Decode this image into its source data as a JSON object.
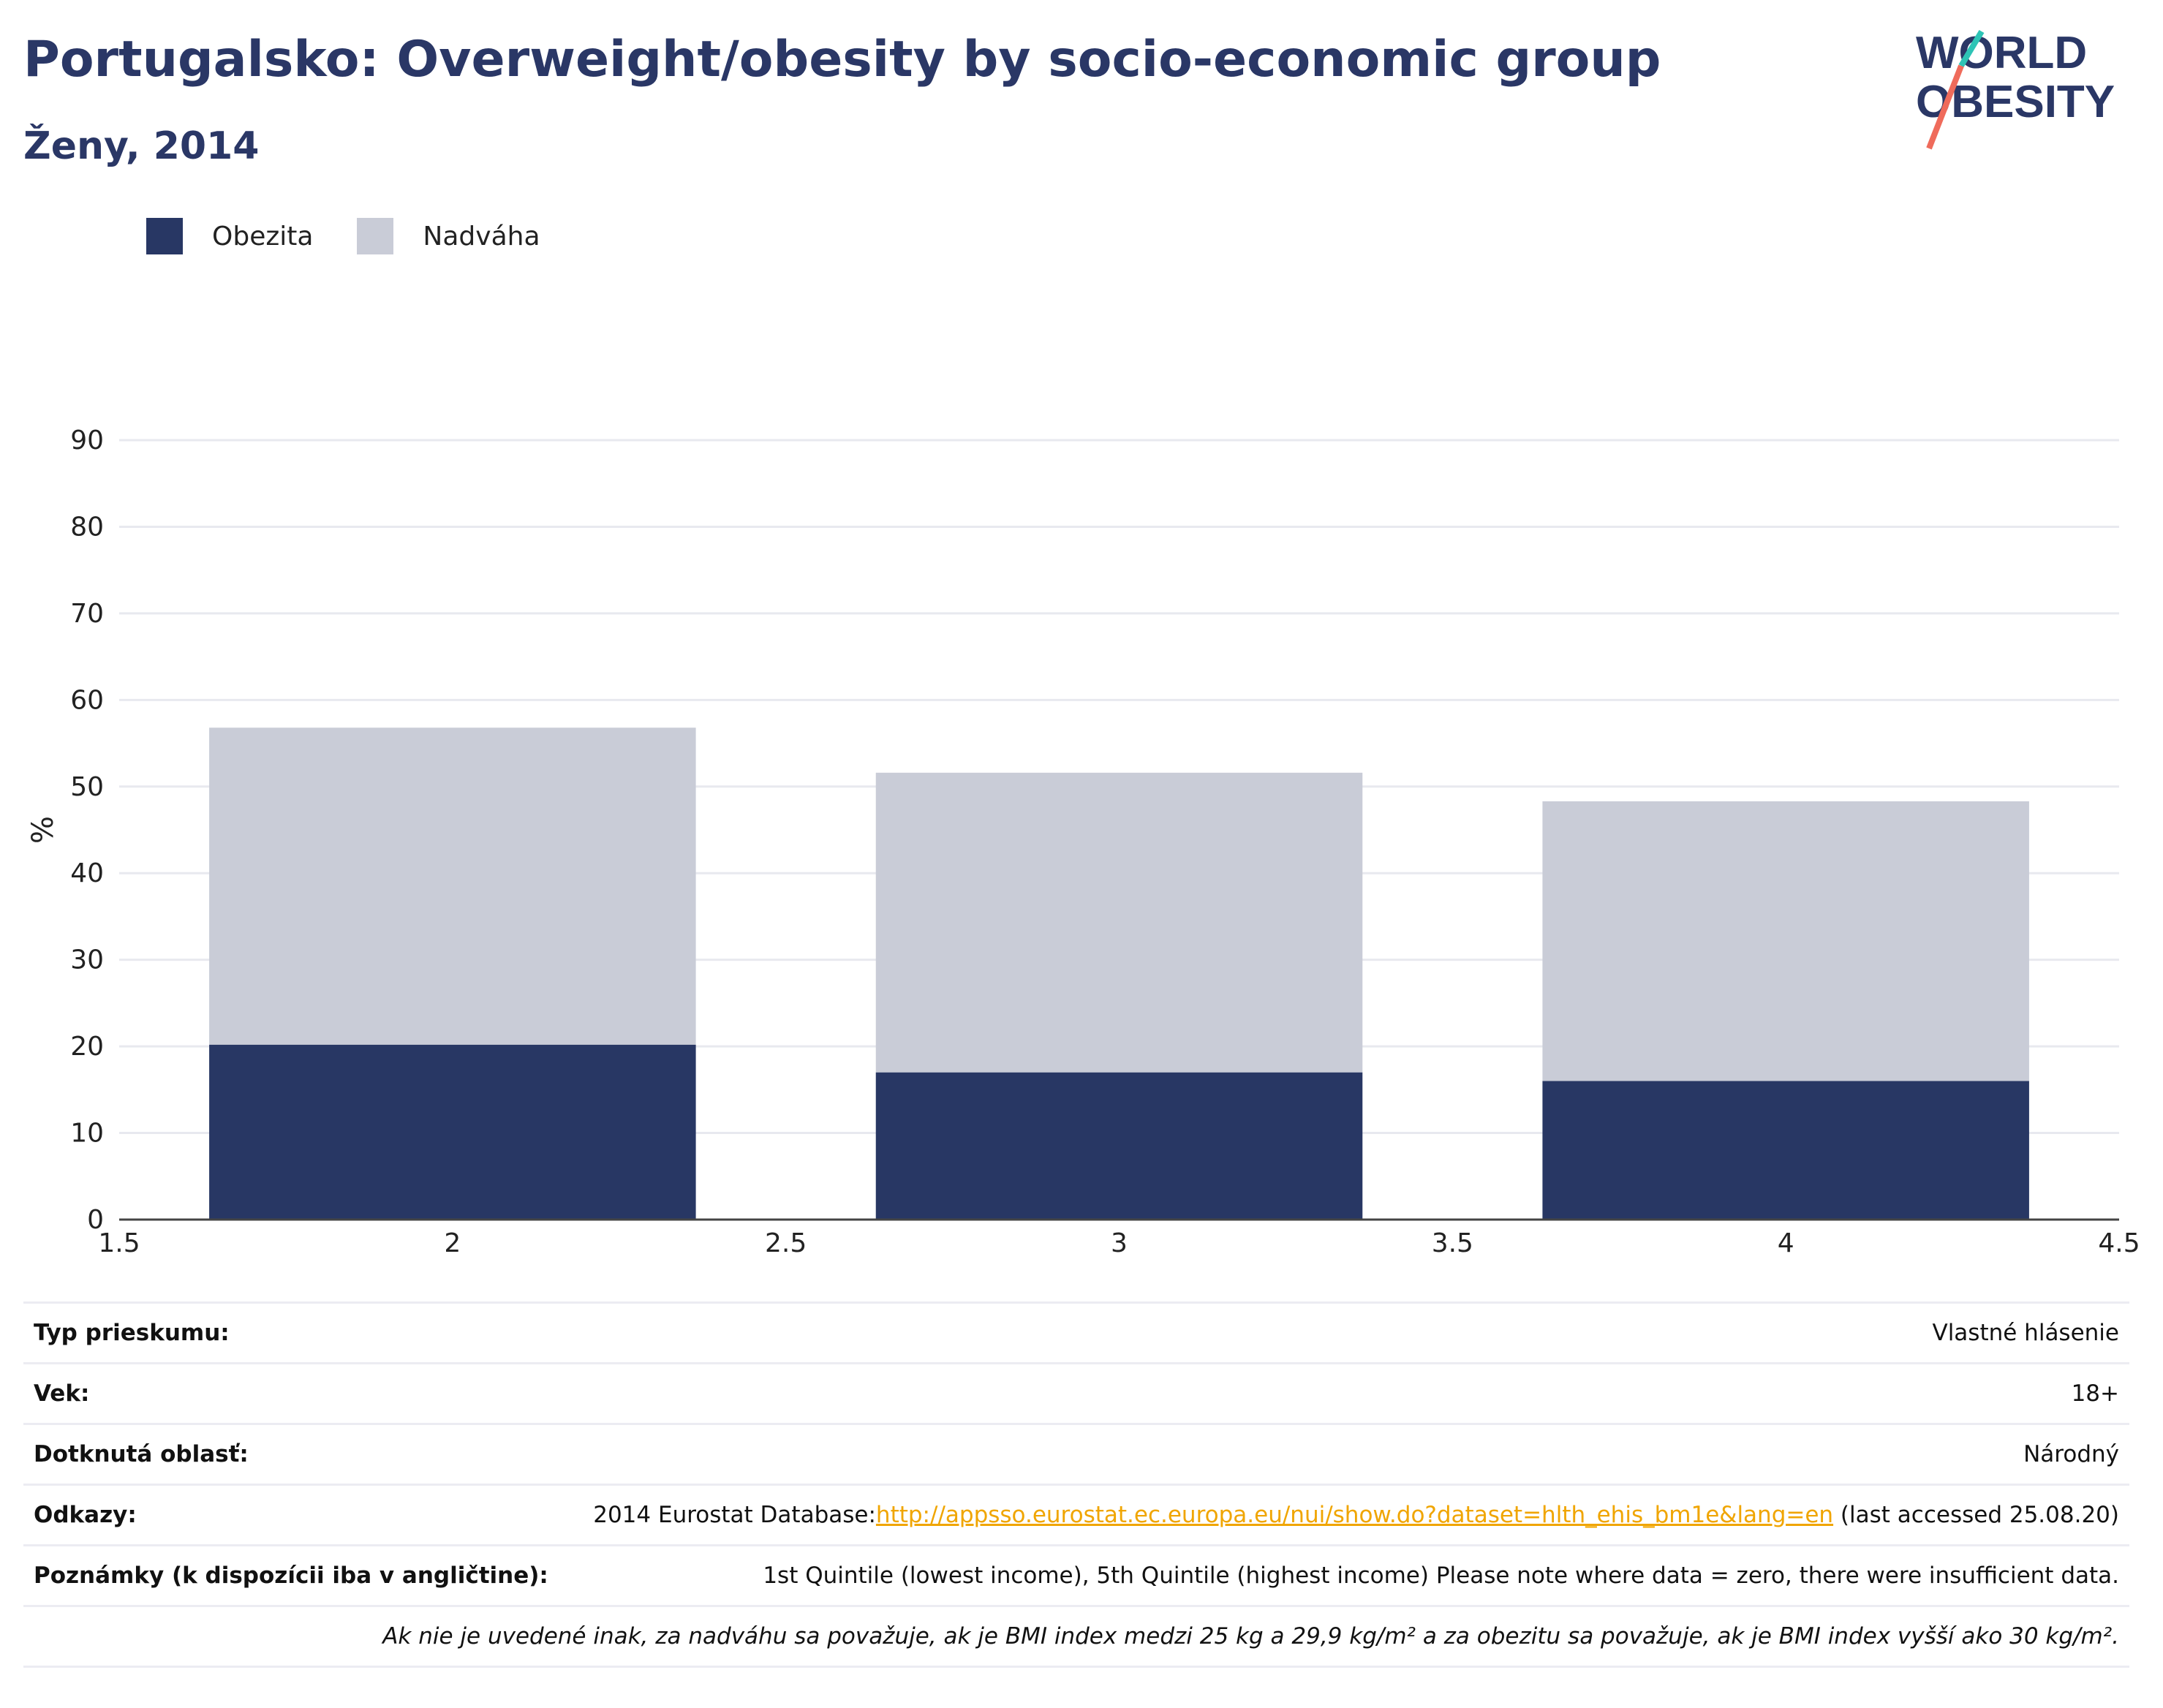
{
  "header": {
    "title": "Portugalsko: Overweight/obesity by socio-economic group",
    "subtitle": "Ženy, 2014",
    "logo_line1": "WORLD",
    "logo_line2": "OBESITY"
  },
  "legend": {
    "items": [
      {
        "label": "Obezita",
        "color": "#283764"
      },
      {
        "label": "Nadváha",
        "color": "#c9ccd7"
      }
    ]
  },
  "chart_data": {
    "type": "bar",
    "stacked": true,
    "x": [
      2,
      3,
      4
    ],
    "xlim": [
      1.5,
      4.5
    ],
    "x_ticks": [
      "1.5",
      "2",
      "2.5",
      "3",
      "3.5",
      "4",
      "4.5"
    ],
    "ylabel": "%",
    "ylim": [
      0,
      90
    ],
    "y_ticks": [
      "0",
      "10",
      "20",
      "30",
      "40",
      "50",
      "60",
      "70",
      "80",
      "90"
    ],
    "grid": true,
    "legend_position": "top-left",
    "series": [
      {
        "name": "Obezita",
        "color": "#283764",
        "values": [
          20.2,
          17.0,
          16.0
        ]
      },
      {
        "name": "Nadváha",
        "color": "#c9ccd7",
        "values": [
          36.6,
          34.6,
          32.3
        ]
      }
    ]
  },
  "info": {
    "survey_type": {
      "label": "Typ prieskumu:",
      "value": "Vlastné hlásenie"
    },
    "age": {
      "label": "Vek:",
      "value": "18+"
    },
    "area": {
      "label": "Dotknutá oblasť:",
      "value": "Národný"
    },
    "refs": {
      "label": "Odkazy:",
      "prefix": "2014 Eurostat Database:",
      "link": "http://appsso.eurostat.ec.europa.eu/nui/show.do?dataset=hlth_ehis_bm1e&lang=en",
      "suffix": " (last accessed 25.08.20)"
    },
    "notes": {
      "label": "Poznámky (k dispozícii iba v angličtine):",
      "value": "1st Quintile (lowest income), 5th Quintile (highest income) Please note where data = zero, there were insufficient data."
    },
    "footnote": "Ak nie je uvedené inak, za nadváhu sa považuje, ak je BMI index medzi 25 kg a 29,9 kg/m² a za obezitu sa považuje, ak je BMI index vyšší ako 30 kg/m²."
  }
}
